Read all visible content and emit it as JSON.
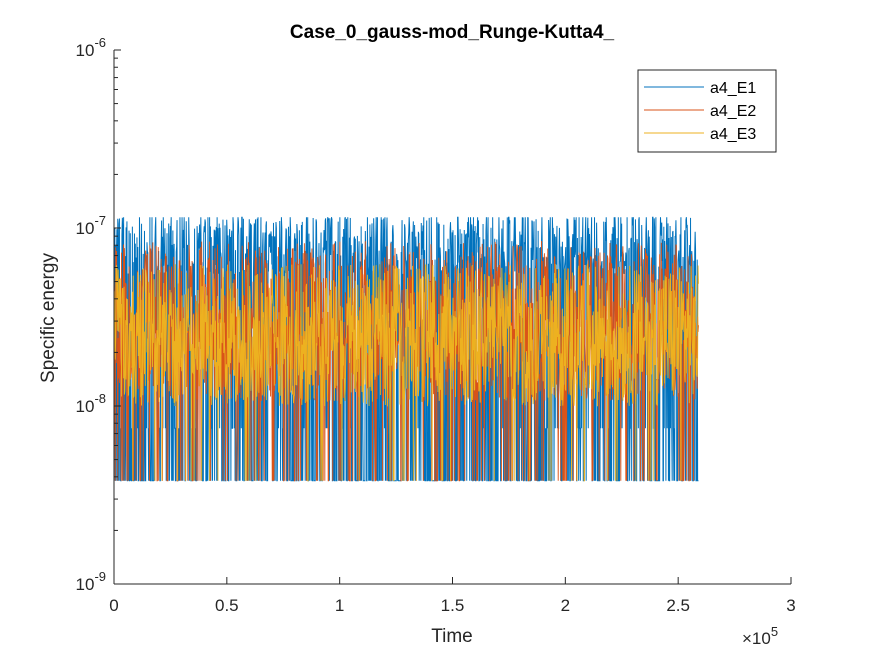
{
  "chart_data": {
    "type": "line",
    "title": "Case_0_gauss-mod_Runge-Kutta4_",
    "xlabel": "Time",
    "ylabel": "Specific energy",
    "xlim": [
      0,
      300000
    ],
    "ylim": [
      1e-09,
      1e-06
    ],
    "yscale": "log",
    "x_multiplier_label": "×10",
    "x_multiplier_exponent": "5",
    "x_ticks": [
      {
        "value": 0,
        "label": "0"
      },
      {
        "value": 50000,
        "label": "0.5"
      },
      {
        "value": 100000,
        "label": "1"
      },
      {
        "value": 150000,
        "label": "1.5"
      },
      {
        "value": 200000,
        "label": "2"
      },
      {
        "value": 250000,
        "label": "2.5"
      },
      {
        "value": 300000,
        "label": "3"
      }
    ],
    "y_ticks": [
      {
        "value": 1e-09,
        "base": "10",
        "exp": "-9"
      },
      {
        "value": 1e-08,
        "base": "10",
        "exp": "-8"
      },
      {
        "value": 1e-07,
        "base": "10",
        "exp": "-7"
      },
      {
        "value": 1e-06,
        "base": "10",
        "exp": "-6"
      }
    ],
    "grid": false,
    "legend_position": "top-right",
    "x_data_end": 259000,
    "series": [
      {
        "name": "a4_E1",
        "color": "#0072BD",
        "min": 3.8e-09,
        "max": 1.15e-07,
        "typical": 7e-08
      },
      {
        "name": "a4_E2",
        "color": "#D95319",
        "min": 3.8e-09,
        "max": 1.15e-07,
        "typical": 3e-08
      },
      {
        "name": "a4_E3",
        "color": "#EDB120",
        "min": 3.8e-09,
        "max": 7e-08,
        "typical": 2.5e-08
      }
    ]
  }
}
